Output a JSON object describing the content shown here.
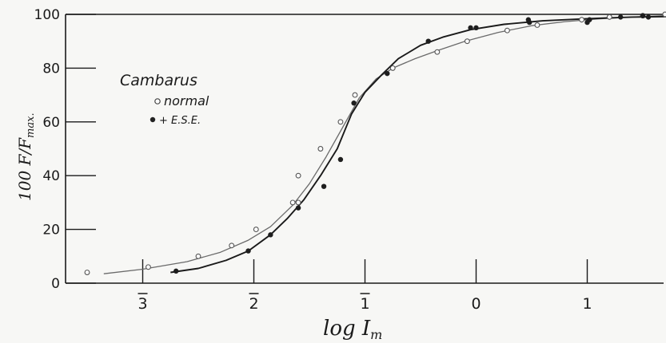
{
  "chart_data": {
    "type": "line",
    "xlabel": "log I",
    "xlabel_sub": "m",
    "ylabel": "100 F/F",
    "ylabel_sub": "max.",
    "ylim": [
      0,
      100
    ],
    "xlim": [
      -3.3,
      1.9
    ],
    "yticks": [
      0,
      20,
      40,
      60,
      80,
      100
    ],
    "xticks": [
      {
        "value": -3,
        "label": "3",
        "bar": true
      },
      {
        "value": -2,
        "label": "2",
        "bar": true
      },
      {
        "value": -1,
        "label": "1",
        "bar": true
      },
      {
        "value": 0,
        "label": "0",
        "bar": false
      },
      {
        "value": 1,
        "label": "1",
        "bar": false
      }
    ],
    "legend": {
      "title": "Cambarus",
      "placement": "upper-left",
      "entries": [
        "normal",
        "+ E.S.E."
      ]
    },
    "series": [
      {
        "name": "normal",
        "marker": "open-circle",
        "points": [
          [
            -3.5,
            4
          ],
          [
            -2.95,
            6
          ],
          [
            -2.5,
            10
          ],
          [
            -2.2,
            14
          ],
          [
            -1.98,
            20
          ],
          [
            -1.65,
            30
          ],
          [
            -1.6,
            30
          ],
          [
            -1.6,
            40
          ],
          [
            -1.4,
            50
          ],
          [
            -1.22,
            60
          ],
          [
            -1.09,
            70
          ],
          [
            -0.75,
            80
          ],
          [
            -0.35,
            86
          ],
          [
            -0.08,
            90
          ],
          [
            0.28,
            94
          ],
          [
            0.55,
            96
          ],
          [
            0.95,
            98
          ],
          [
            1.2,
            99
          ],
          [
            1.5,
            99.5
          ],
          [
            1.7,
            100
          ]
        ]
      },
      {
        "name": "+ E.S.E.",
        "marker": "filled-circle",
        "points": [
          [
            -2.7,
            4.5
          ],
          [
            -2.05,
            12
          ],
          [
            -1.85,
            18
          ],
          [
            -1.6,
            28
          ],
          [
            -1.37,
            36
          ],
          [
            -1.22,
            46
          ],
          [
            -1.1,
            67
          ],
          [
            -0.8,
            78
          ],
          [
            -0.43,
            90
          ],
          [
            -0.05,
            95
          ],
          [
            0.0,
            95
          ],
          [
            0.47,
            98
          ],
          [
            0.48,
            97
          ],
          [
            1.0,
            97
          ],
          [
            1.02,
            98
          ],
          [
            1.3,
            99
          ],
          [
            1.5,
            99.5
          ],
          [
            1.55,
            99
          ]
        ]
      }
    ],
    "curves": [
      {
        "name": "normal",
        "points": [
          [
            -3.35,
            3.5
          ],
          [
            -3.0,
            5.2
          ],
          [
            -2.6,
            8
          ],
          [
            -2.3,
            11.5
          ],
          [
            -2.05,
            16
          ],
          [
            -1.85,
            21
          ],
          [
            -1.65,
            29
          ],
          [
            -1.5,
            37
          ],
          [
            -1.35,
            47
          ],
          [
            -1.2,
            58
          ],
          [
            -1.05,
            69
          ],
          [
            -0.9,
            76
          ],
          [
            -0.75,
            80
          ],
          [
            -0.55,
            83.5
          ],
          [
            -0.35,
            86.5
          ],
          [
            -0.1,
            90
          ],
          [
            0.2,
            93.3
          ],
          [
            0.5,
            95.8
          ],
          [
            0.8,
            97.3
          ],
          [
            1.1,
            98.3
          ],
          [
            1.4,
            99
          ],
          [
            1.7,
            99.5
          ],
          [
            1.9,
            99.7
          ]
        ]
      },
      {
        "name": "+ E.S.E.",
        "points": [
          [
            -2.75,
            4
          ],
          [
            -2.5,
            5.5
          ],
          [
            -2.25,
            8.5
          ],
          [
            -2.05,
            12
          ],
          [
            -1.85,
            18
          ],
          [
            -1.7,
            24
          ],
          [
            -1.55,
            31
          ],
          [
            -1.4,
            40
          ],
          [
            -1.25,
            50
          ],
          [
            -1.12,
            63
          ],
          [
            -1.0,
            71
          ],
          [
            -0.85,
            77.5
          ],
          [
            -0.7,
            83.5
          ],
          [
            -0.5,
            88.5
          ],
          [
            -0.3,
            91.5
          ],
          [
            -0.05,
            94.3
          ],
          [
            0.25,
            96.3
          ],
          [
            0.6,
            97.6
          ],
          [
            1.0,
            98.4
          ],
          [
            1.4,
            99
          ],
          [
            1.9,
            99.3
          ]
        ]
      }
    ]
  }
}
